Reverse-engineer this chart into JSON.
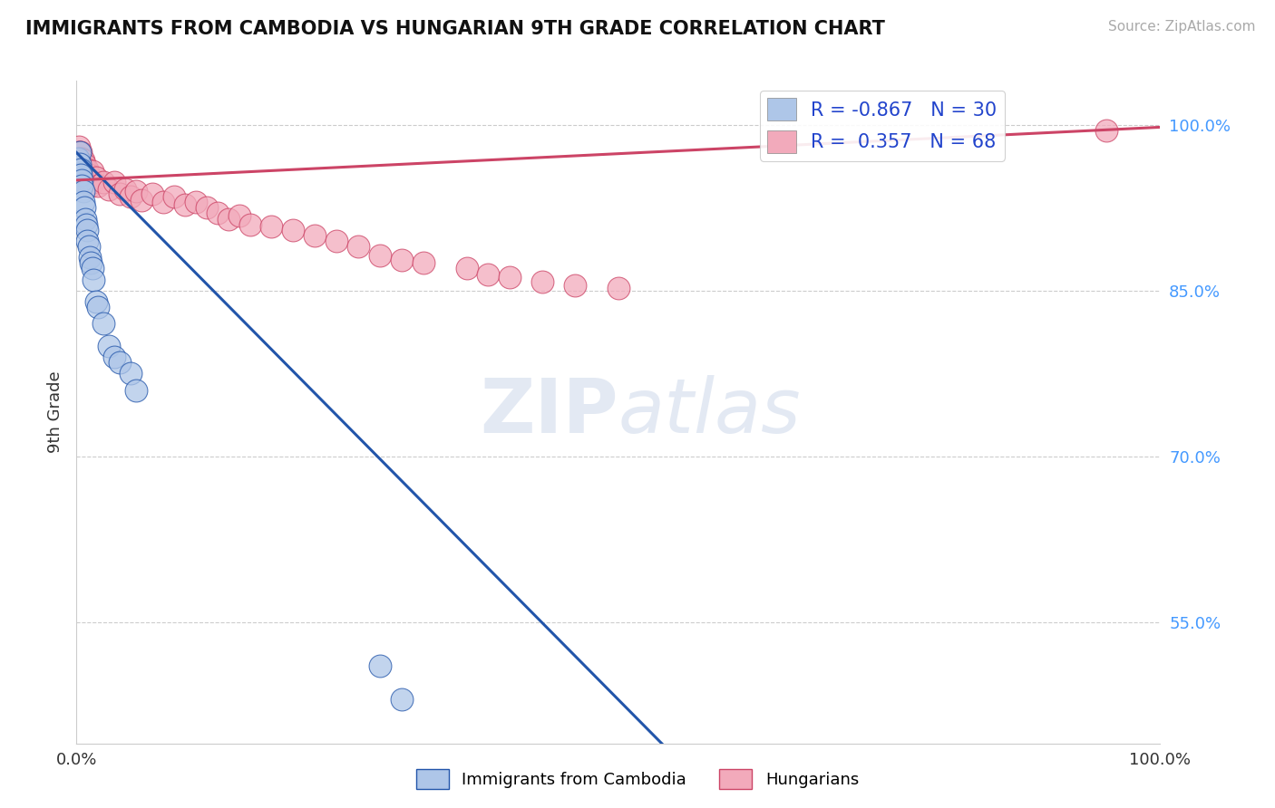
{
  "title": "IMMIGRANTS FROM CAMBODIA VS HUNGARIAN 9TH GRADE CORRELATION CHART",
  "source": "Source: ZipAtlas.com",
  "ylabel": "9th Grade",
  "xlim": [
    0.0,
    1.0
  ],
  "ylim": [
    0.44,
    1.04
  ],
  "blue_R": -0.867,
  "blue_N": 30,
  "pink_R": 0.357,
  "pink_N": 68,
  "blue_color": "#aec6e8",
  "pink_color": "#f2aabb",
  "blue_line_color": "#2255aa",
  "pink_line_color": "#cc4466",
  "ytick_vals": [
    0.55,
    0.7,
    0.85,
    1.0
  ],
  "ytick_labels": [
    "55.0%",
    "70.0%",
    "85.0%",
    "100.0%"
  ],
  "blue_scatter_x": [
    0.001,
    0.002,
    0.003,
    0.003,
    0.004,
    0.004,
    0.005,
    0.005,
    0.006,
    0.006,
    0.007,
    0.008,
    0.009,
    0.01,
    0.01,
    0.011,
    0.012,
    0.013,
    0.015,
    0.016,
    0.018,
    0.02,
    0.025,
    0.03,
    0.035,
    0.04,
    0.05,
    0.055,
    0.28,
    0.3
  ],
  "blue_scatter_y": [
    0.97,
    0.96,
    0.975,
    0.965,
    0.96,
    0.955,
    0.95,
    0.945,
    0.94,
    0.93,
    0.925,
    0.915,
    0.91,
    0.905,
    0.895,
    0.89,
    0.88,
    0.875,
    0.87,
    0.86,
    0.84,
    0.835,
    0.82,
    0.8,
    0.79,
    0.785,
    0.775,
    0.76,
    0.51,
    0.48
  ],
  "pink_scatter_x": [
    0.001,
    0.001,
    0.001,
    0.002,
    0.002,
    0.002,
    0.002,
    0.003,
    0.003,
    0.003,
    0.003,
    0.003,
    0.004,
    0.004,
    0.004,
    0.005,
    0.005,
    0.005,
    0.005,
    0.006,
    0.006,
    0.007,
    0.007,
    0.008,
    0.008,
    0.009,
    0.01,
    0.01,
    0.011,
    0.012,
    0.013,
    0.015,
    0.016,
    0.018,
    0.02,
    0.025,
    0.03,
    0.035,
    0.04,
    0.045,
    0.05,
    0.055,
    0.06,
    0.07,
    0.08,
    0.09,
    0.1,
    0.11,
    0.12,
    0.13,
    0.14,
    0.15,
    0.16,
    0.18,
    0.2,
    0.22,
    0.24,
    0.26,
    0.28,
    0.3,
    0.32,
    0.36,
    0.38,
    0.4,
    0.43,
    0.46,
    0.5,
    0.95
  ],
  "pink_scatter_y": [
    0.975,
    0.97,
    0.965,
    0.98,
    0.975,
    0.97,
    0.965,
    0.975,
    0.97,
    0.965,
    0.96,
    0.955,
    0.975,
    0.965,
    0.955,
    0.97,
    0.965,
    0.958,
    0.95,
    0.968,
    0.955,
    0.965,
    0.952,
    0.96,
    0.948,
    0.955,
    0.96,
    0.948,
    0.955,
    0.95,
    0.945,
    0.958,
    0.948,
    0.952,
    0.945,
    0.948,
    0.942,
    0.948,
    0.938,
    0.942,
    0.935,
    0.94,
    0.932,
    0.938,
    0.93,
    0.935,
    0.928,
    0.93,
    0.925,
    0.92,
    0.915,
    0.918,
    0.91,
    0.908,
    0.905,
    0.9,
    0.895,
    0.89,
    0.882,
    0.878,
    0.875,
    0.87,
    0.865,
    0.862,
    0.858,
    0.855,
    0.852,
    0.995
  ]
}
